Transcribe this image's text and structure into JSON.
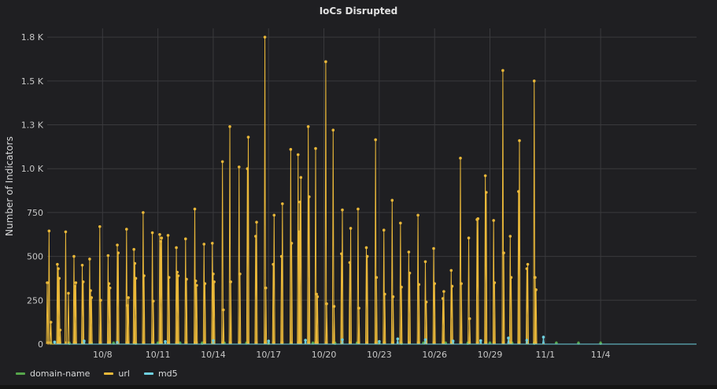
{
  "chart_data": {
    "type": "line",
    "title": "IoCs Disrupted",
    "ylabel": "Number of Indicators",
    "xlabel": "",
    "ylim": [
      0,
      1800
    ],
    "yticks": [
      0,
      250,
      500,
      750,
      1000,
      1250,
      1500,
      1750
    ],
    "ytick_labels": [
      "0",
      "250",
      "500",
      "750",
      "1.0 K",
      "1.3 K",
      "1.5 K",
      "1.8 K"
    ],
    "xlim_days": [
      0,
      35.2
    ],
    "xticks": [
      {
        "label": "10/8",
        "day": 3
      },
      {
        "label": "10/11",
        "day": 6
      },
      {
        "label": "10/14",
        "day": 9
      },
      {
        "label": "10/17",
        "day": 12
      },
      {
        "label": "10/20",
        "day": 15
      },
      {
        "label": "10/23",
        "day": 18
      },
      {
        "label": "10/26",
        "day": 21
      },
      {
        "label": "10/29",
        "day": 24
      },
      {
        "label": "11/1",
        "day": 27
      },
      {
        "label": "11/4",
        "day": 30
      }
    ],
    "grid": true,
    "legend_position": "bottom-left",
    "series": [
      {
        "name": "domain-name",
        "color": "#56a64b",
        "points": [
          [
            0.2,
            5
          ],
          [
            1.2,
            4
          ],
          [
            2.4,
            6
          ],
          [
            3.6,
            5
          ],
          [
            4.8,
            4
          ],
          [
            6.0,
            6
          ],
          [
            7.2,
            5
          ],
          [
            8.4,
            4
          ],
          [
            9.6,
            6
          ],
          [
            10.8,
            5
          ],
          [
            12.0,
            4
          ],
          [
            13.2,
            6
          ],
          [
            14.4,
            5
          ],
          [
            15.6,
            4
          ],
          [
            16.8,
            6
          ],
          [
            18.0,
            5
          ],
          [
            19.2,
            4
          ],
          [
            20.4,
            6
          ],
          [
            21.6,
            5
          ],
          [
            22.8,
            4
          ],
          [
            24.0,
            6
          ],
          [
            25.2,
            5
          ],
          [
            26.4,
            4
          ],
          [
            27.6,
            6
          ],
          [
            28.8,
            5
          ],
          [
            30.0,
            4
          ]
        ]
      },
      {
        "name": "url",
        "color": "#eab839",
        "points": [
          [
            0.0,
            350
          ],
          [
            0.1,
            645
          ],
          [
            0.2,
            125
          ],
          [
            0.55,
            455
          ],
          [
            0.6,
            430
          ],
          [
            0.65,
            375
          ],
          [
            0.7,
            80
          ],
          [
            1.0,
            640
          ],
          [
            1.15,
            290
          ],
          [
            1.45,
            500
          ],
          [
            1.5,
            330
          ],
          [
            1.55,
            350
          ],
          [
            1.9,
            450
          ],
          [
            1.95,
            355
          ],
          [
            2.3,
            485
          ],
          [
            2.35,
            305
          ],
          [
            2.4,
            265
          ],
          [
            2.85,
            670
          ],
          [
            2.9,
            250
          ],
          [
            3.3,
            505
          ],
          [
            3.35,
            345
          ],
          [
            3.4,
            320
          ],
          [
            3.8,
            565
          ],
          [
            3.85,
            520
          ],
          [
            4.3,
            655
          ],
          [
            4.35,
            220
          ],
          [
            4.4,
            265
          ],
          [
            4.7,
            540
          ],
          [
            4.75,
            460
          ],
          [
            4.8,
            375
          ],
          [
            5.2,
            750
          ],
          [
            5.25,
            390
          ],
          [
            5.7,
            635
          ],
          [
            5.75,
            245
          ],
          [
            6.1,
            625
          ],
          [
            6.15,
            585
          ],
          [
            6.2,
            605
          ],
          [
            6.55,
            620
          ],
          [
            6.6,
            380
          ],
          [
            7.0,
            550
          ],
          [
            7.05,
            410
          ],
          [
            7.1,
            390
          ],
          [
            7.5,
            600
          ],
          [
            7.55,
            370
          ],
          [
            8.0,
            770
          ],
          [
            8.05,
            360
          ],
          [
            8.1,
            335
          ],
          [
            8.5,
            570
          ],
          [
            8.55,
            345
          ],
          [
            8.95,
            575
          ],
          [
            9.0,
            400
          ],
          [
            9.05,
            355
          ],
          [
            9.5,
            1040
          ],
          [
            9.55,
            195
          ],
          [
            9.9,
            1240
          ],
          [
            9.95,
            355
          ],
          [
            10.4,
            1010
          ],
          [
            10.45,
            400
          ],
          [
            10.85,
            1000
          ],
          [
            10.9,
            1180
          ],
          [
            11.3,
            615
          ],
          [
            11.35,
            695
          ],
          [
            11.8,
            1750
          ],
          [
            11.85,
            320
          ],
          [
            12.25,
            455
          ],
          [
            12.3,
            735
          ],
          [
            12.7,
            500
          ],
          [
            12.75,
            800
          ],
          [
            13.2,
            1110
          ],
          [
            13.25,
            575
          ],
          [
            13.6,
            1080
          ],
          [
            13.65,
            640
          ],
          [
            13.7,
            810
          ],
          [
            13.75,
            950
          ],
          [
            14.15,
            1240
          ],
          [
            14.2,
            840
          ],
          [
            14.55,
            1115
          ],
          [
            14.6,
            285
          ],
          [
            14.65,
            270
          ],
          [
            15.1,
            1610
          ],
          [
            15.15,
            230
          ],
          [
            15.5,
            1220
          ],
          [
            15.55,
            215
          ],
          [
            15.95,
            515
          ],
          [
            16.0,
            765
          ],
          [
            16.4,
            465
          ],
          [
            16.45,
            660
          ],
          [
            16.85,
            770
          ],
          [
            16.9,
            205
          ],
          [
            17.3,
            550
          ],
          [
            17.35,
            500
          ],
          [
            17.8,
            1165
          ],
          [
            17.85,
            380
          ],
          [
            18.25,
            650
          ],
          [
            18.3,
            285
          ],
          [
            18.7,
            820
          ],
          [
            18.75,
            270
          ],
          [
            19.15,
            690
          ],
          [
            19.2,
            325
          ],
          [
            19.6,
            525
          ],
          [
            19.65,
            405
          ],
          [
            20.1,
            735
          ],
          [
            20.15,
            340
          ],
          [
            20.5,
            470
          ],
          [
            20.55,
            240
          ],
          [
            20.95,
            545
          ],
          [
            21.0,
            345
          ],
          [
            21.45,
            260
          ],
          [
            21.5,
            300
          ],
          [
            21.9,
            420
          ],
          [
            21.95,
            330
          ],
          [
            22.4,
            1060
          ],
          [
            22.45,
            345
          ],
          [
            22.85,
            605
          ],
          [
            22.9,
            145
          ],
          [
            23.3,
            710
          ],
          [
            23.35,
            715
          ],
          [
            23.75,
            960
          ],
          [
            23.8,
            865
          ],
          [
            24.2,
            705
          ],
          [
            24.25,
            350
          ],
          [
            24.7,
            1560
          ],
          [
            24.75,
            520
          ],
          [
            25.1,
            615
          ],
          [
            25.15,
            380
          ],
          [
            25.55,
            870
          ],
          [
            25.6,
            1160
          ],
          [
            26.0,
            430
          ],
          [
            26.05,
            455
          ],
          [
            26.4,
            1500
          ],
          [
            26.45,
            380
          ],
          [
            26.5,
            310
          ]
        ]
      },
      {
        "name": "md5",
        "color": "#6ed0e0",
        "points": [
          [
            0.4,
            12
          ],
          [
            2.0,
            18
          ],
          [
            3.8,
            10
          ],
          [
            6.4,
            15
          ],
          [
            9.0,
            20
          ],
          [
            12.0,
            18
          ],
          [
            14.0,
            22
          ],
          [
            16.0,
            25
          ],
          [
            18.0,
            15
          ],
          [
            19.0,
            30
          ],
          [
            20.5,
            25
          ],
          [
            22.0,
            18
          ],
          [
            23.5,
            20
          ],
          [
            25.0,
            35
          ],
          [
            26.0,
            22
          ],
          [
            26.9,
            40
          ]
        ]
      }
    ]
  },
  "legend": {
    "items": [
      {
        "label": "domain-name",
        "color": "#56a64b"
      },
      {
        "label": "url",
        "color": "#eab839"
      },
      {
        "label": "md5",
        "color": "#6ed0e0"
      }
    ]
  }
}
